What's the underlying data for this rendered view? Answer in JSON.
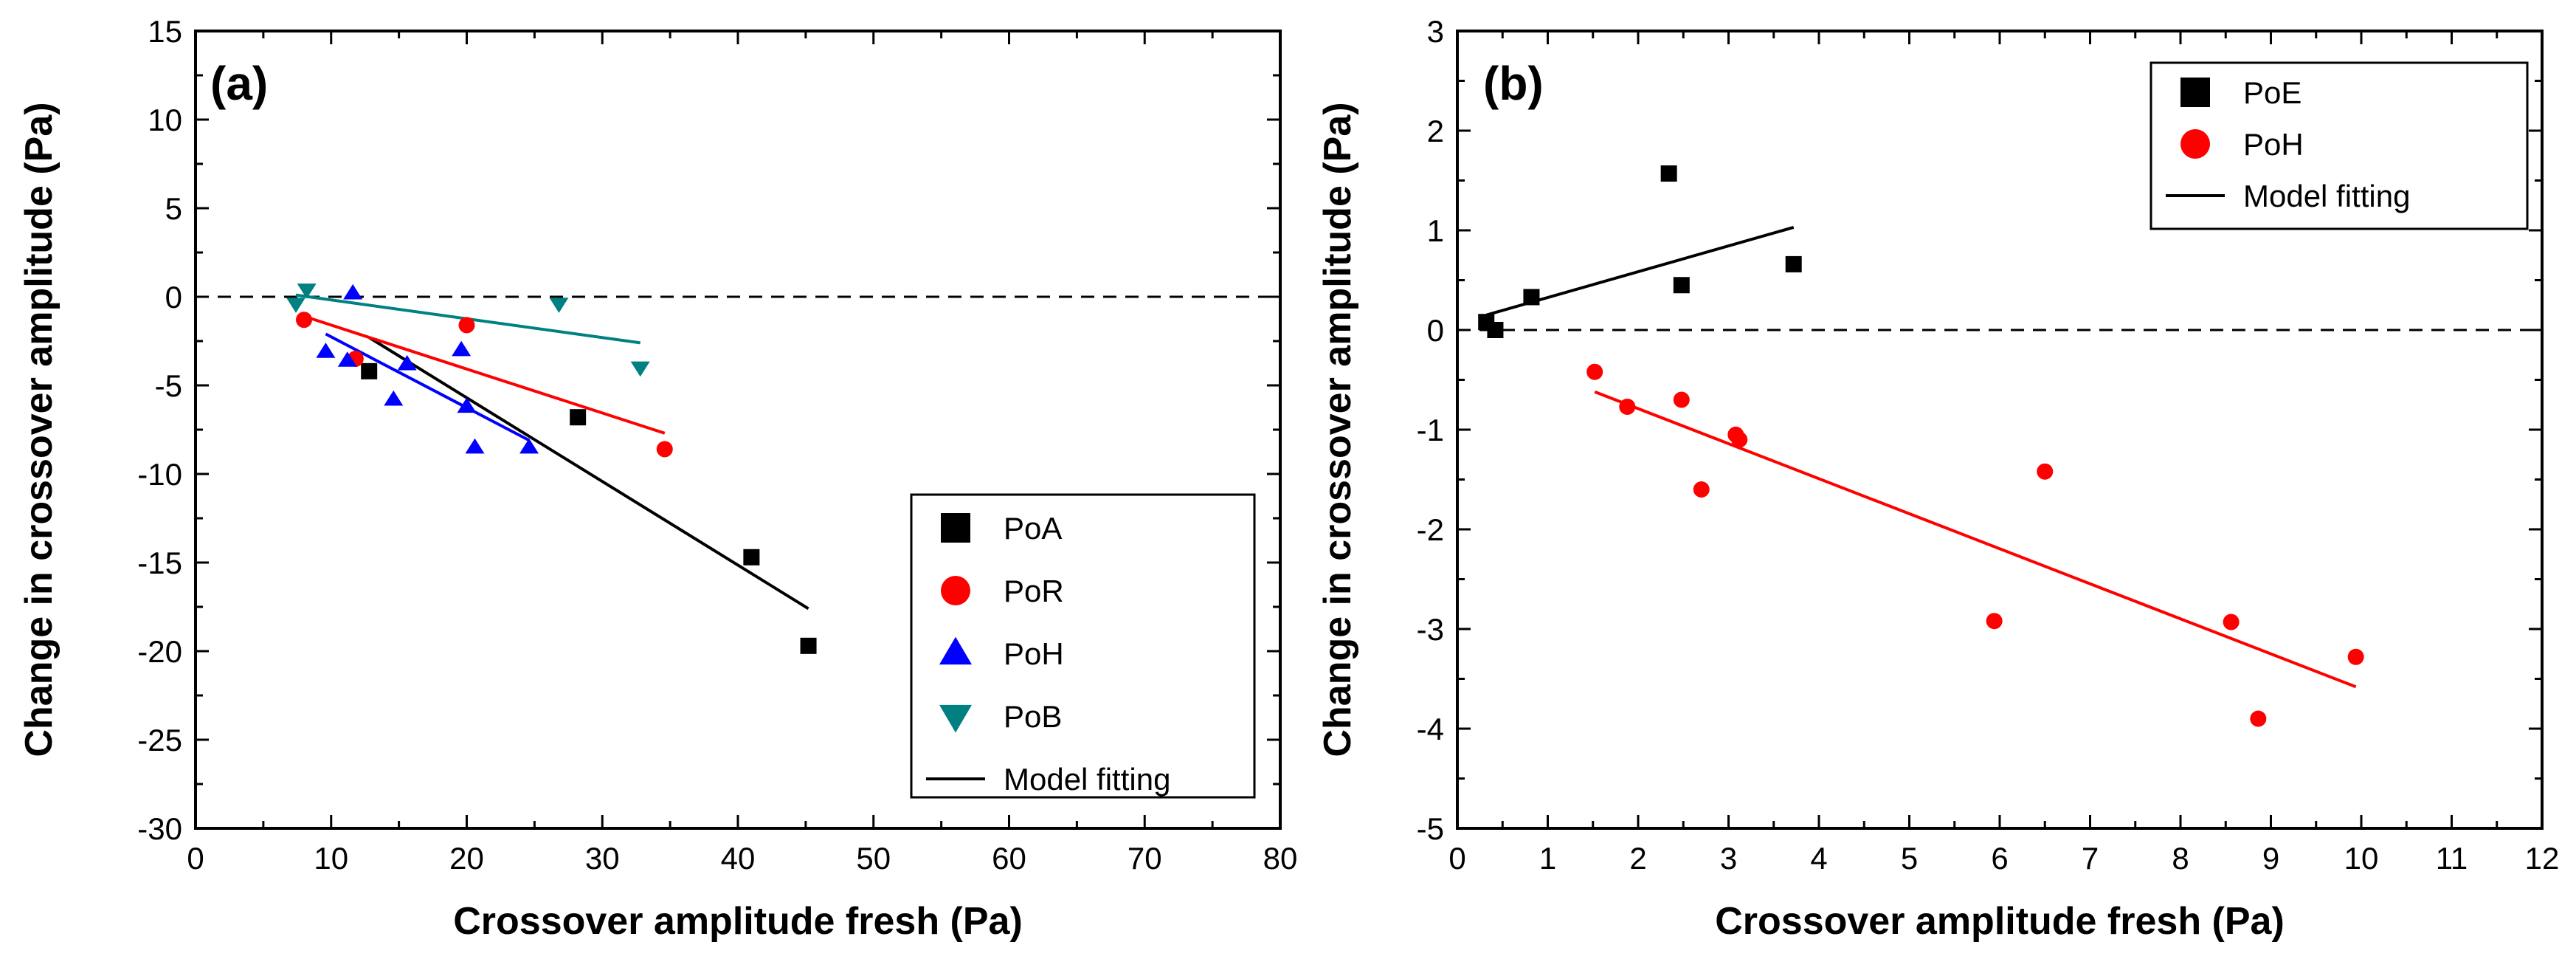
{
  "chart_data": [
    {
      "type": "scatter",
      "panel_label": "(a)",
      "xlabel": "Crossover amplitude fresh (Pa)",
      "ylabel": "Change in crossover amplitude (Pa)",
      "xlim": [
        0,
        80
      ],
      "ylim": [
        -30,
        15
      ],
      "xticks": [
        0,
        10,
        20,
        30,
        40,
        50,
        60,
        70,
        80
      ],
      "yticks": [
        -30,
        -25,
        -20,
        -15,
        -10,
        -5,
        0,
        5,
        10,
        15
      ],
      "reference_line": {
        "y": 0,
        "style": "dashed"
      },
      "legend_position": "bottom-right",
      "series": [
        {
          "name": "PoA",
          "marker": "square",
          "color": "#000000",
          "x": [
            12.8,
            28.2,
            41.0,
            45.2
          ],
          "y": [
            -4.2,
            -6.8,
            -14.7,
            -19.7
          ]
        },
        {
          "name": "PoR",
          "marker": "circle",
          "color": "#ff0000",
          "x": [
            8.0,
            11.8,
            20.0,
            34.6
          ],
          "y": [
            -1.3,
            -3.5,
            -1.6,
            -8.6
          ]
        },
        {
          "name": "PoH",
          "marker": "triangle-up",
          "color": "#0000ff",
          "x": [
            9.6,
            11.2,
            11.6,
            14.6,
            15.6,
            19.6,
            20.0,
            20.6,
            24.6
          ],
          "y": [
            -3.1,
            -3.6,
            0.2,
            -5.8,
            -3.8,
            -3.0,
            -6.2,
            -8.5,
            -8.5
          ]
        },
        {
          "name": "PoB",
          "marker": "triangle-down",
          "color": "#008080",
          "x": [
            7.4,
            8.2,
            26.8,
            32.8
          ],
          "y": [
            -0.4,
            0.4,
            -0.4,
            -4.0
          ]
        }
      ],
      "fit_lines": [
        {
          "series": "PoA",
          "color": "#000000",
          "x": [
            12.8,
            45.2
          ],
          "y": [
            -2.3,
            -17.6
          ]
        },
        {
          "series": "PoR",
          "color": "#ff0000",
          "x": [
            8.0,
            34.6
          ],
          "y": [
            -1.1,
            -7.7
          ]
        },
        {
          "series": "PoH",
          "color": "#0000ff",
          "x": [
            9.6,
            24.6
          ],
          "y": [
            -2.1,
            -8.1
          ]
        },
        {
          "series": "PoB",
          "color": "#008080",
          "x": [
            7.4,
            32.8
          ],
          "y": [
            0.1,
            -2.6
          ]
        }
      ],
      "legend": [
        "PoA",
        "PoR",
        "PoH",
        "PoB",
        "Model fitting"
      ]
    },
    {
      "type": "scatter",
      "panel_label": "(b)",
      "xlabel": "Crossover amplitude fresh (Pa)",
      "ylabel": "Change in crossover amplitude (Pa)",
      "xlim": [
        0,
        12
      ],
      "ylim": [
        -5,
        3
      ],
      "xticks": [
        0,
        1,
        2,
        3,
        4,
        5,
        6,
        7,
        8,
        9,
        10,
        11,
        12
      ],
      "yticks": [
        -5,
        -4,
        -3,
        -2,
        -1,
        0,
        1,
        2,
        3
      ],
      "reference_line": {
        "y": 0,
        "style": "dashed"
      },
      "legend_position": "top-right",
      "series": [
        {
          "name": "PoE",
          "marker": "square",
          "color": "#000000",
          "x": [
            0.32,
            0.42,
            0.82,
            2.34,
            2.48,
            3.72
          ],
          "y": [
            0.08,
            0.0,
            0.33,
            1.57,
            0.45,
            0.66
          ]
        },
        {
          "name": "PoH",
          "marker": "circle",
          "color": "#ff0000",
          "x": [
            1.52,
            1.88,
            2.48,
            2.7,
            3.08,
            3.12,
            5.94,
            6.5,
            8.56,
            8.86,
            9.94
          ],
          "y": [
            -0.42,
            -0.77,
            -0.7,
            -1.6,
            -1.05,
            -1.1,
            -2.92,
            -1.42,
            -2.93,
            -3.9,
            -3.28
          ]
        }
      ],
      "fit_lines": [
        {
          "series": "PoE",
          "color": "#000000",
          "x": [
            0.32,
            3.72
          ],
          "y": [
            0.15,
            1.03
          ]
        },
        {
          "series": "PoH",
          "color": "#ff0000",
          "x": [
            1.52,
            9.94
          ],
          "y": [
            -0.62,
            -3.58
          ]
        }
      ],
      "legend": [
        "PoE",
        "PoH",
        "Model fitting"
      ]
    }
  ]
}
